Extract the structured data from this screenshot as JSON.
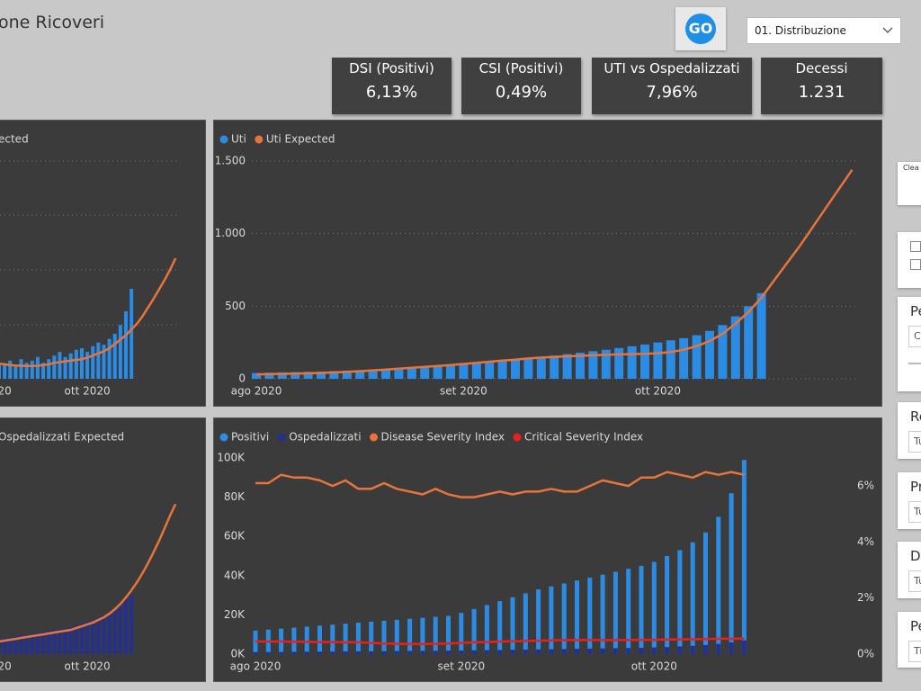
{
  "header": {
    "title": "one Ricoveri",
    "button": "GO",
    "dropdown": "01. Distribuzione"
  },
  "kpis": [
    {
      "label": "DSI (Positivi)",
      "value": "6,13%"
    },
    {
      "label": "CSI (Positivi)",
      "value": "0,49%"
    },
    {
      "label": "UTI vs Ospedalizzati",
      "value": "7,96%"
    },
    {
      "label": "Decessi",
      "value": "1.231"
    }
  ],
  "chart_data": [
    {
      "type": "combo",
      "ylim": [
        0,
        1500
      ],
      "categories": [
        null,
        "20",
        null,
        null,
        null,
        null,
        null,
        null,
        null,
        null,
        null,
        null,
        null,
        null,
        null,
        null,
        "ott 2020",
        null,
        null,
        null,
        null,
        null,
        null,
        null,
        null,
        null,
        null,
        null,
        null,
        null,
        null,
        null,
        null
      ],
      "series": [
        {
          "type": "bar",
          "color": "#2b8ce6",
          "values": [
            110,
            100,
            125,
            85,
            135,
            110,
            125,
            150,
            110,
            135,
            160,
            185,
            150,
            175,
            200,
            210,
            185,
            225,
            250,
            235,
            275,
            310,
            370,
            465,
            620,
            null,
            null,
            null,
            null,
            null,
            null,
            null,
            null
          ]
        },
        {
          "type": "line",
          "name": "ected",
          "color": "#e8743b",
          "values": [
            105,
            100,
            95,
            92,
            90,
            88,
            88,
            90,
            95,
            100,
            110,
            115,
            120,
            125,
            130,
            135,
            145,
            160,
            175,
            190,
            210,
            240,
            270,
            300,
            340,
            380,
            430,
            490,
            550,
            615,
            680,
            750,
            830
          ]
        }
      ]
    },
    {
      "type": "combo",
      "ylim": [
        0,
        1500
      ],
      "grid": true,
      "yticks": [
        0,
        500,
        {
          "value": 1000,
          "label": "1.000"
        },
        {
          "value": 1500,
          "label": "1.500"
        }
      ],
      "categories": [
        "ago 2020",
        null,
        null,
        null,
        null,
        null,
        null,
        null,
        null,
        null,
        null,
        null,
        null,
        null,
        null,
        null,
        "set 2020",
        null,
        null,
        null,
        null,
        null,
        null,
        null,
        null,
        null,
        null,
        null,
        null,
        null,
        null,
        "ott 2020",
        null,
        null,
        null,
        null,
        null,
        null,
        null,
        null,
        null,
        null,
        null,
        null,
        null,
        null,
        null
      ],
      "series": [
        {
          "type": "bar",
          "name": "Uti",
          "color": "#2b8ce6",
          "values": [
            40,
            42,
            44,
            46,
            48,
            50,
            53,
            56,
            60,
            64,
            68,
            72,
            78,
            84,
            90,
            96,
            102,
            110,
            118,
            126,
            134,
            142,
            150,
            160,
            170,
            180,
            190,
            200,
            212,
            224,
            236,
            250,
            265,
            280,
            300,
            330,
            370,
            430,
            500,
            590,
            null,
            null,
            null,
            null,
            null,
            null,
            null
          ]
        },
        {
          "type": "line",
          "name": "Uti Expected",
          "color": "#e8743b",
          "values": [
            30,
            32,
            34,
            36,
            38,
            40,
            44,
            48,
            52,
            58,
            64,
            70,
            76,
            82,
            88,
            95,
            102,
            110,
            118,
            126,
            132,
            140,
            146,
            150,
            155,
            158,
            162,
            165,
            168,
            170,
            172,
            176,
            185,
            200,
            225,
            260,
            310,
            380,
            460,
            560,
            680,
            800,
            920,
            1050,
            1180,
            1310,
            1440
          ]
        }
      ]
    },
    {
      "type": "combo",
      "ylim": [
        0,
        3000
      ],
      "categories": [
        null,
        "20",
        null,
        null,
        null,
        null,
        null,
        null,
        null,
        null,
        null,
        null,
        null,
        null,
        null,
        null,
        "ott 2020",
        null,
        null,
        null,
        null,
        null,
        null,
        null,
        null,
        null,
        null,
        null,
        null,
        null,
        null,
        null,
        null
      ],
      "series": [
        {
          "type": "bar",
          "color": "#24308f",
          "values": [
            225,
            238,
            251,
            264,
            277,
            290,
            304,
            317,
            330,
            343,
            356,
            370,
            383,
            396,
            422,
            449,
            475,
            502,
            528,
            568,
            607,
            660,
            726,
            792,
            871,
            null,
            null,
            null,
            null,
            null,
            null,
            null,
            null
          ]
        },
        {
          "type": "line",
          "name": "Ospedalizzati Expected",
          "color": "#e8743b",
          "values": [
            185,
            198,
            211,
            224,
            238,
            251,
            264,
            277,
            290,
            304,
            317,
            330,
            343,
            356,
            383,
            409,
            436,
            462,
            502,
            541,
            594,
            660,
            739,
            832,
            937,
            1056,
            1188,
            1333,
            1492,
            1663,
            1848,
            2033,
            2204
          ]
        }
      ]
    },
    {
      "type": "combo",
      "ylim": [
        0,
        100000
      ],
      "grid": false,
      "yticks": [
        {
          "value": 0,
          "label": "0K"
        },
        {
          "value": 20000,
          "label": "20K"
        },
        {
          "value": 40000,
          "label": "40K"
        },
        {
          "value": 60000,
          "label": "60K"
        },
        {
          "value": 80000,
          "label": "80K"
        },
        {
          "value": 100000,
          "label": "100K"
        }
      ],
      "y2lim": [
        0,
        7
      ],
      "y2ticks": [
        {
          "value": 0,
          "label": "0%"
        },
        {
          "value": 2,
          "label": "2%"
        },
        {
          "value": 4,
          "label": "4%"
        },
        {
          "value": 6,
          "label": "6%"
        }
      ],
      "categories": [
        "ago 2020",
        null,
        null,
        null,
        null,
        null,
        null,
        null,
        null,
        null,
        null,
        null,
        null,
        null,
        null,
        null,
        "set 2020",
        null,
        null,
        null,
        null,
        null,
        null,
        null,
        null,
        null,
        null,
        null,
        null,
        null,
        null,
        "ott 2020",
        null,
        null,
        null,
        null,
        null,
        null,
        null
      ],
      "series": [
        {
          "type": "bar",
          "name": "Positivi",
          "color": "#2b8ce6",
          "values": [
            12000,
            12500,
            13000,
            13500,
            14000,
            14500,
            15000,
            15500,
            16000,
            16500,
            17000,
            17500,
            18000,
            18500,
            19000,
            19500,
            21000,
            23000,
            25000,
            27000,
            29000,
            31000,
            33000,
            34500,
            36000,
            37500,
            39000,
            40500,
            42000,
            43500,
            45000,
            47000,
            50000,
            53000,
            57000,
            62000,
            70000,
            82000,
            99000
          ]
        },
        {
          "type": "bar",
          "name": "Ospedalizzati",
          "color": "#24308f",
          "values": [
            1000,
            1050,
            1100,
            1150,
            1200,
            1250,
            1300,
            1350,
            1400,
            1450,
            1500,
            1550,
            1600,
            1650,
            1700,
            1750,
            1800,
            1900,
            2000,
            2100,
            2200,
            2300,
            2400,
            2500,
            2600,
            2700,
            2800,
            2900,
            3000,
            3100,
            3200,
            3400,
            3600,
            3900,
            4200,
            4600,
            5200,
            6000,
            7000
          ]
        },
        {
          "type": "line",
          "name": "Disease Severity Index",
          "color": "#e8743b",
          "axis": "y2",
          "values": [
            6.1,
            6.1,
            6.4,
            6.3,
            6.3,
            6.2,
            6.0,
            6.2,
            5.9,
            5.9,
            6.1,
            5.9,
            5.8,
            5.7,
            5.9,
            5.7,
            5.6,
            5.6,
            5.7,
            5.8,
            5.7,
            5.8,
            5.8,
            5.9,
            5.8,
            5.8,
            6.0,
            6.2,
            6.1,
            6.0,
            6.3,
            6.3,
            6.5,
            6.4,
            6.3,
            6.5,
            6.4,
            6.5,
            6.4
          ]
        },
        {
          "type": "line",
          "name": "Critical Severity Index",
          "color": "#e8201e",
          "axis": "y2",
          "values": [
            0.45,
            0.45,
            0.45,
            0.44,
            0.44,
            0.43,
            0.43,
            0.42,
            0.42,
            0.4,
            0.38,
            0.37,
            0.36,
            0.36,
            0.37,
            0.38,
            0.4,
            0.42,
            0.43,
            0.45,
            0.46,
            0.47,
            0.48,
            0.49,
            0.5,
            0.5,
            0.5,
            0.5,
            0.5,
            0.5,
            0.51,
            0.51,
            0.52,
            0.52,
            0.53,
            0.54,
            0.55,
            0.55,
            0.56
          ]
        }
      ]
    }
  ],
  "side_panels": [
    {
      "title": "Clea"
    },
    {
      "title": "Pe",
      "field": "C"
    },
    {
      "title": "Re",
      "field": "Tu"
    },
    {
      "title": "Pr",
      "field": "Tu"
    },
    {
      "title": "Di",
      "field": "Tu"
    },
    {
      "title": "Pe",
      "field": "Ti"
    }
  ]
}
